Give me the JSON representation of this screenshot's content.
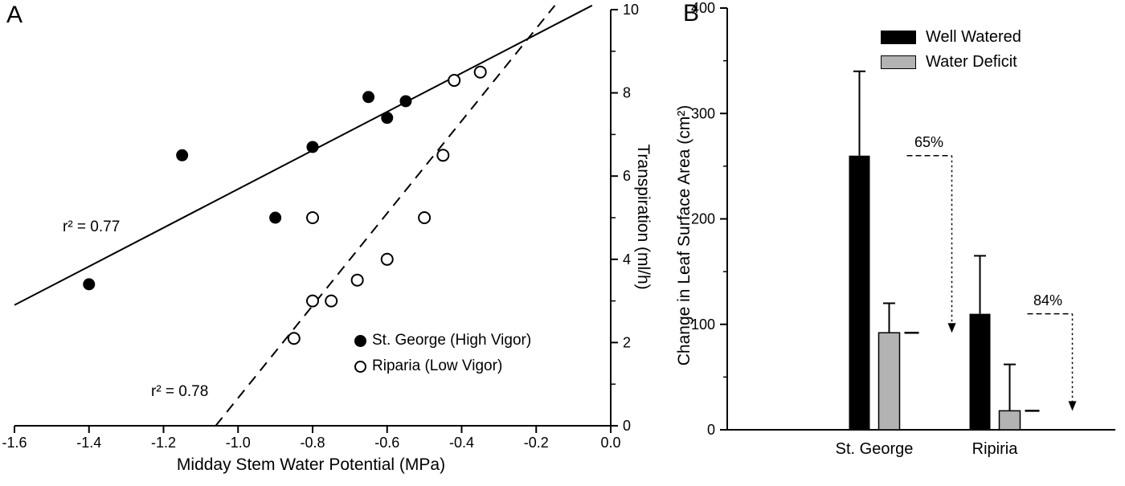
{
  "figure": {
    "panelA": {
      "label": "A",
      "xlabel": "Midday Stem Water Potential (MPa)",
      "ylabel": "Transpiration (ml/h)",
      "r2_solid_label": "r² = 0.77",
      "r2_dashed_label": "r² = 0.78",
      "legend": {
        "item1": "St. George (High Vigor)",
        "item2": "Riparia (Low Vigor)"
      }
    },
    "panelB": {
      "label": "B",
      "ylabel": "Change in Leaf Surface Area (cm²)",
      "legend": {
        "item1": "Well Watered",
        "item2": "Water Deficit"
      },
      "categories": {
        "cat1": "St. George",
        "cat2": "Ripiria"
      },
      "annotations": {
        "a1": "65%",
        "a2": "84%"
      }
    },
    "colors": {
      "well_watered": "#000000",
      "water_deficit": "#b3b3b3",
      "background": "#ffffff"
    }
  },
  "chart_data": [
    {
      "type": "scatter",
      "title": "",
      "xlabel": "Midday Stem Water Potential (MPa)",
      "ylabel": "Transpiration (ml/h)",
      "xlim": [
        -1.6,
        0.0
      ],
      "ylim": [
        0,
        10
      ],
      "x_ticks": [
        -1.6,
        -1.4,
        -1.2,
        -1.0,
        -0.8,
        -0.6,
        -0.4,
        -0.2,
        0.0
      ],
      "x_tick_labels": [
        "-1.6",
        "-1.4",
        "-1.2",
        "-1.0",
        "-0.8",
        "-0.6",
        "-0.4",
        "-0.2",
        "0.0"
      ],
      "y_ticks": [
        0,
        2,
        4,
        6,
        8,
        10
      ],
      "y_minor_ticks": [
        1,
        3,
        5,
        7,
        9
      ],
      "grid": false,
      "legend_position": "lower right inside",
      "series": [
        {
          "name": "St. George (High Vigor)",
          "marker": "filled-circle",
          "points": [
            [
              -1.4,
              3.4
            ],
            [
              -1.15,
              6.5
            ],
            [
              -0.9,
              5.0
            ],
            [
              -0.8,
              6.7
            ],
            [
              -0.65,
              7.9
            ],
            [
              -0.6,
              7.4
            ],
            [
              -0.55,
              7.8
            ]
          ],
          "fit_line": {
            "style": "solid",
            "r2": 0.77,
            "x1": -1.6,
            "y1": 2.9,
            "x2": -0.05,
            "y2": 10.1
          }
        },
        {
          "name": "Riparia (Low Vigor)",
          "marker": "open-circle",
          "points": [
            [
              -0.85,
              2.1
            ],
            [
              -0.8,
              3.0
            ],
            [
              -0.8,
              5.0
            ],
            [
              -0.75,
              3.0
            ],
            [
              -0.68,
              3.5
            ],
            [
              -0.6,
              4.0
            ],
            [
              -0.5,
              5.0
            ],
            [
              -0.45,
              6.5
            ],
            [
              -0.42,
              8.3
            ],
            [
              -0.35,
              8.5
            ]
          ],
          "fit_line": {
            "style": "dashed",
            "r2": 0.78,
            "x1": -1.06,
            "y1": 0.0,
            "x2": -0.15,
            "y2": 10.1
          }
        }
      ]
    },
    {
      "type": "bar",
      "categories": [
        "St. George",
        "Ripiria"
      ],
      "series": [
        {
          "name": "Well Watered",
          "color": "#000000",
          "values": [
            260,
            110
          ],
          "errors_up": [
            80,
            55
          ]
        },
        {
          "name": "Water Deficit",
          "color": "#b3b3b3",
          "values": [
            92,
            18
          ],
          "errors_up": [
            28,
            44
          ]
        }
      ],
      "title": "",
      "xlabel": "",
      "ylabel": "Change in Leaf Surface Area (cm²)",
      "ylim": [
        0,
        400
      ],
      "y_ticks": [
        0,
        100,
        200,
        300,
        400
      ],
      "y_minor_ticks": [
        50,
        150,
        250,
        350
      ],
      "grid": false,
      "legend_position": "upper inside",
      "annotations": [
        {
          "label": "65%",
          "from_value": 260,
          "to_value": 92,
          "category": "St. George"
        },
        {
          "label": "84%",
          "from_value": 110,
          "to_value": 18,
          "category": "Ripiria"
        }
      ]
    }
  ]
}
